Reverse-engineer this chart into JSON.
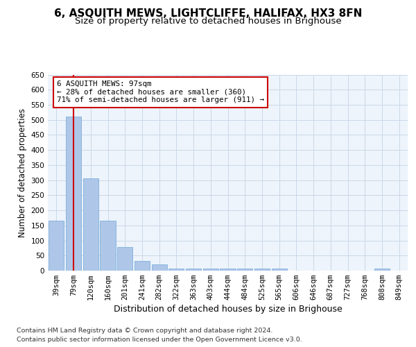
{
  "title": "6, ASQUITH MEWS, LIGHTCLIFFE, HALIFAX, HX3 8FN",
  "subtitle": "Size of property relative to detached houses in Brighouse",
  "xlabel": "Distribution of detached houses by size in Brighouse",
  "ylabel": "Number of detached properties",
  "categories": [
    "39sqm",
    "79sqm",
    "120sqm",
    "160sqm",
    "201sqm",
    "241sqm",
    "282sqm",
    "322sqm",
    "363sqm",
    "403sqm",
    "444sqm",
    "484sqm",
    "525sqm",
    "565sqm",
    "606sqm",
    "646sqm",
    "687sqm",
    "727sqm",
    "768sqm",
    "808sqm",
    "849sqm"
  ],
  "values": [
    165,
    510,
    305,
    165,
    78,
    33,
    20,
    8,
    8,
    8,
    8,
    8,
    8,
    8,
    0,
    0,
    0,
    0,
    0,
    8,
    0
  ],
  "bar_color": "#aec6e8",
  "bar_edge_color": "#6ea8d8",
  "grid_color": "#c8d8e8",
  "background_color": "#eef4fb",
  "vline_x": 1,
  "vline_color": "#cc0000",
  "annotation_text": "6 ASQUITH MEWS: 97sqm\n← 28% of detached houses are smaller (360)\n71% of semi-detached houses are larger (911) →",
  "annotation_box_color": "#ffffff",
  "annotation_box_edge": "#cc0000",
  "ylim": [
    0,
    650
  ],
  "yticks": [
    0,
    50,
    100,
    150,
    200,
    250,
    300,
    350,
    400,
    450,
    500,
    550,
    600,
    650
  ],
  "footer_line1": "Contains HM Land Registry data © Crown copyright and database right 2024.",
  "footer_line2": "Contains public sector information licensed under the Open Government Licence v3.0.",
  "title_fontsize": 11,
  "subtitle_fontsize": 9.5,
  "tick_fontsize": 7.5,
  "ylabel_fontsize": 8.5,
  "xlabel_fontsize": 9
}
